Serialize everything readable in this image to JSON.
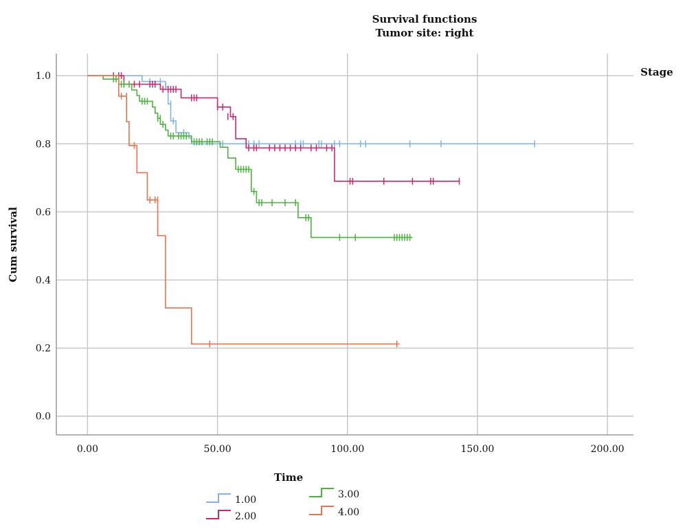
{
  "chart_data": {
    "type": "line",
    "title": "Survival functions",
    "subtitle": "Tumor site: right",
    "xlabel": "Time",
    "ylabel": "Cum survival",
    "xlim": [
      -12,
      210
    ],
    "ylim": [
      -0.055,
      1.065
    ],
    "xticks": [
      0,
      50,
      100,
      150,
      200
    ],
    "xtick_labels": [
      "0.00",
      "50.00",
      "100.00",
      "150.00",
      "200.00"
    ],
    "yticks": [
      0,
      0.2,
      0.4,
      0.6,
      0.8,
      1.0
    ],
    "ytick_labels": [
      "0.0",
      "0.2",
      "0.4",
      "0.6",
      "0.8",
      "1.0"
    ],
    "grid": true,
    "legend_title": "Stage",
    "legend_placement": "bottom",
    "series": [
      {
        "name": "1.00",
        "color": "#7fb5e6",
        "steps": [
          [
            0,
            1.0
          ],
          [
            21,
            1.0
          ],
          [
            21,
            0.983
          ],
          [
            30,
            0.983
          ],
          [
            30,
            0.967
          ],
          [
            31,
            0.967
          ],
          [
            31,
            0.917
          ],
          [
            32,
            0.917
          ],
          [
            32,
            0.867
          ],
          [
            34,
            0.867
          ],
          [
            34,
            0.833
          ],
          [
            39,
            0.833
          ],
          [
            39,
            0.817
          ],
          [
            40,
            0.817
          ],
          [
            40,
            0.8
          ],
          [
            172,
            0.8
          ]
        ],
        "censored": [
          [
            24,
            0.983
          ],
          [
            28,
            0.983
          ],
          [
            30,
            0.967
          ],
          [
            32,
            0.917
          ],
          [
            33,
            0.867
          ],
          [
            37,
            0.833
          ],
          [
            52,
            0.8
          ],
          [
            62,
            0.8
          ],
          [
            64,
            0.8
          ],
          [
            66,
            0.8
          ],
          [
            80,
            0.8
          ],
          [
            82,
            0.8
          ],
          [
            83,
            0.8
          ],
          [
            89,
            0.8
          ],
          [
            90,
            0.8
          ],
          [
            95,
            0.8
          ],
          [
            97,
            0.8
          ],
          [
            105,
            0.8
          ],
          [
            107,
            0.8
          ],
          [
            124,
            0.8
          ],
          [
            136,
            0.8
          ],
          [
            172,
            0.8
          ]
        ]
      },
      {
        "name": "2.00",
        "color": "#d0256e",
        "steps": [
          [
            0,
            1.0
          ],
          [
            14,
            1.0
          ],
          [
            14,
            0.975
          ],
          [
            28,
            0.975
          ],
          [
            28,
            0.96
          ],
          [
            36,
            0.96
          ],
          [
            36,
            0.935
          ],
          [
            50,
            0.935
          ],
          [
            50,
            0.908
          ],
          [
            55,
            0.908
          ],
          [
            55,
            0.88
          ],
          [
            57,
            0.88
          ],
          [
            57,
            0.815
          ],
          [
            61,
            0.815
          ],
          [
            61,
            0.788
          ],
          [
            95,
            0.788
          ],
          [
            95,
            0.69
          ],
          [
            143,
            0.69
          ]
        ],
        "censored": [
          [
            10,
            1.0
          ],
          [
            12,
            1.0
          ],
          [
            13,
            1.0
          ],
          [
            14,
            0.975
          ],
          [
            18,
            0.975
          ],
          [
            20,
            0.975
          ],
          [
            24,
            0.975
          ],
          [
            25,
            0.975
          ],
          [
            26,
            0.975
          ],
          [
            29,
            0.96
          ],
          [
            31,
            0.96
          ],
          [
            32,
            0.96
          ],
          [
            33,
            0.96
          ],
          [
            34,
            0.96
          ],
          [
            40,
            0.935
          ],
          [
            41,
            0.935
          ],
          [
            42,
            0.935
          ],
          [
            50,
            0.908
          ],
          [
            52,
            0.908
          ],
          [
            54,
            0.88
          ],
          [
            56,
            0.88
          ],
          [
            62,
            0.788
          ],
          [
            64,
            0.788
          ],
          [
            65,
            0.788
          ],
          [
            70,
            0.788
          ],
          [
            72,
            0.788
          ],
          [
            74,
            0.788
          ],
          [
            76,
            0.788
          ],
          [
            78,
            0.788
          ],
          [
            80,
            0.788
          ],
          [
            82,
            0.788
          ],
          [
            86,
            0.788
          ],
          [
            88,
            0.788
          ],
          [
            92,
            0.788
          ],
          [
            94,
            0.788
          ],
          [
            101,
            0.69
          ],
          [
            102,
            0.69
          ],
          [
            114,
            0.69
          ],
          [
            125,
            0.69
          ],
          [
            132,
            0.69
          ],
          [
            133,
            0.69
          ],
          [
            143,
            0.69
          ]
        ]
      },
      {
        "name": "3.00",
        "color": "#49b33b",
        "steps": [
          [
            0,
            1.0
          ],
          [
            6,
            1.0
          ],
          [
            6,
            0.99
          ],
          [
            12,
            0.99
          ],
          [
            12,
            0.975
          ],
          [
            17,
            0.975
          ],
          [
            17,
            0.958
          ],
          [
            19,
            0.958
          ],
          [
            19,
            0.942
          ],
          [
            20,
            0.942
          ],
          [
            20,
            0.925
          ],
          [
            25,
            0.925
          ],
          [
            25,
            0.908
          ],
          [
            26,
            0.908
          ],
          [
            26,
            0.89
          ],
          [
            27,
            0.89
          ],
          [
            27,
            0.875
          ],
          [
            28,
            0.875
          ],
          [
            28,
            0.857
          ],
          [
            30,
            0.857
          ],
          [
            30,
            0.84
          ],
          [
            31,
            0.84
          ],
          [
            31,
            0.823
          ],
          [
            40,
            0.823
          ],
          [
            40,
            0.806
          ],
          [
            51,
            0.806
          ],
          [
            51,
            0.79
          ],
          [
            54,
            0.79
          ],
          [
            54,
            0.758
          ],
          [
            57,
            0.758
          ],
          [
            57,
            0.725
          ],
          [
            63,
            0.725
          ],
          [
            63,
            0.66
          ],
          [
            65,
            0.66
          ],
          [
            65,
            0.627
          ],
          [
            81,
            0.627
          ],
          [
            81,
            0.583
          ],
          [
            86,
            0.583
          ],
          [
            86,
            0.525
          ],
          [
            125,
            0.525
          ]
        ],
        "censored": [
          [
            10,
            0.99
          ],
          [
            11,
            0.99
          ],
          [
            13,
            0.975
          ],
          [
            14,
            0.975
          ],
          [
            16,
            0.975
          ],
          [
            21,
            0.925
          ],
          [
            22,
            0.925
          ],
          [
            23,
            0.925
          ],
          [
            27,
            0.875
          ],
          [
            28,
            0.875
          ],
          [
            29,
            0.857
          ],
          [
            32,
            0.823
          ],
          [
            33,
            0.823
          ],
          [
            35,
            0.823
          ],
          [
            36,
            0.823
          ],
          [
            37,
            0.823
          ],
          [
            38,
            0.823
          ],
          [
            41,
            0.806
          ],
          [
            42,
            0.806
          ],
          [
            43,
            0.806
          ],
          [
            44,
            0.806
          ],
          [
            46,
            0.806
          ],
          [
            47,
            0.806
          ],
          [
            48,
            0.806
          ],
          [
            58,
            0.725
          ],
          [
            59,
            0.725
          ],
          [
            60,
            0.725
          ],
          [
            61,
            0.725
          ],
          [
            62,
            0.725
          ],
          [
            64,
            0.66
          ],
          [
            66,
            0.627
          ],
          [
            67,
            0.627
          ],
          [
            71,
            0.627
          ],
          [
            76,
            0.627
          ],
          [
            80,
            0.627
          ],
          [
            84,
            0.583
          ],
          [
            85,
            0.583
          ],
          [
            97,
            0.525
          ],
          [
            103,
            0.525
          ],
          [
            118,
            0.525
          ],
          [
            119,
            0.525
          ],
          [
            120,
            0.525
          ],
          [
            121,
            0.525
          ],
          [
            122,
            0.525
          ],
          [
            123,
            0.525
          ],
          [
            124,
            0.525
          ]
        ]
      },
      {
        "name": "4.00",
        "color": "#ee7149",
        "steps": [
          [
            0,
            1.0
          ],
          [
            12,
            1.0
          ],
          [
            12,
            0.94
          ],
          [
            15,
            0.94
          ],
          [
            15,
            0.865
          ],
          [
            16,
            0.865
          ],
          [
            16,
            0.795
          ],
          [
            19,
            0.795
          ],
          [
            19,
            0.715
          ],
          [
            23,
            0.715
          ],
          [
            23,
            0.635
          ],
          [
            27,
            0.635
          ],
          [
            27,
            0.53
          ],
          [
            30,
            0.53
          ],
          [
            30,
            0.318
          ],
          [
            40,
            0.318
          ],
          [
            40,
            0.212
          ],
          [
            120,
            0.212
          ]
        ],
        "censored": [
          [
            13,
            0.94
          ],
          [
            15,
            0.94
          ],
          [
            18,
            0.795
          ],
          [
            24,
            0.635
          ],
          [
            26,
            0.635
          ],
          [
            27,
            0.635
          ],
          [
            47,
            0.212
          ],
          [
            119,
            0.212
          ]
        ]
      }
    ]
  }
}
